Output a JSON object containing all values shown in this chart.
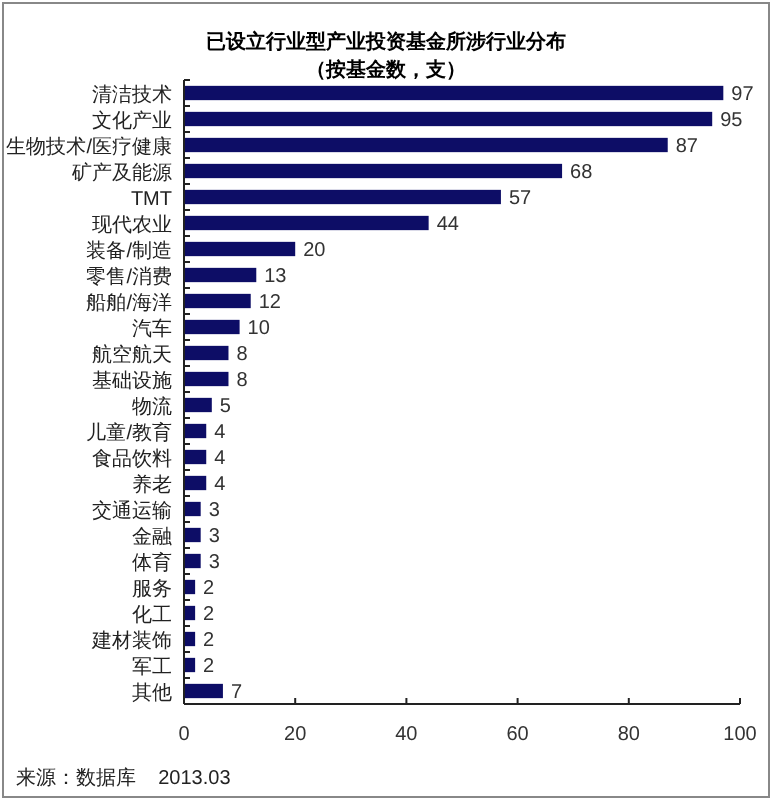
{
  "chart_data": {
    "type": "bar",
    "orientation": "horizontal",
    "title": "已设立行业型产业投资基金所涉行业分布",
    "subtitle": "（按基金数，支）",
    "categories": [
      "清洁技术",
      "文化产业",
      "生物技术/医疗健康",
      "矿产及能源",
      "TMT",
      "现代农业",
      "装备/制造",
      "零售/消费",
      "船舶/海洋",
      "汽车",
      "航空航天",
      "基础设施",
      "物流",
      "儿童/教育",
      "食品饮料",
      "养老",
      "交通运输",
      "金融",
      "体育",
      "服务",
      "化工",
      "建材装饰",
      "军工",
      "其他"
    ],
    "values": [
      97,
      95,
      87,
      68,
      57,
      44,
      20,
      13,
      12,
      10,
      8,
      8,
      5,
      4,
      4,
      4,
      3,
      3,
      3,
      2,
      2,
      2,
      2,
      7
    ],
    "color": "#0d0d66",
    "xlim": [
      0,
      100
    ],
    "xticks": [
      0,
      20,
      40,
      60,
      80,
      100
    ],
    "data_labels": true,
    "grid": false,
    "annotations": [
      "来源：数据库    2013.03"
    ]
  }
}
